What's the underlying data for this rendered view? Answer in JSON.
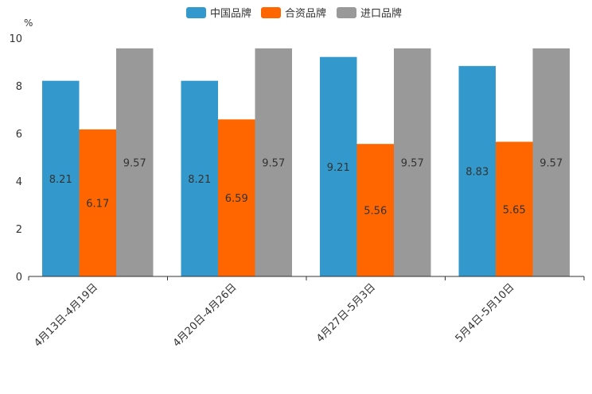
{
  "chart_data": {
    "type": "bar",
    "title": "",
    "xlabel": "",
    "ylabel": "%",
    "ylim": [
      0,
      10
    ],
    "yticks": [
      0,
      2,
      4,
      6,
      8,
      10
    ],
    "grid": false,
    "legend_position": "top-center",
    "categories": [
      "4月13日-4月19日",
      "4月20日-4月26日",
      "4月27日-5月3日",
      "5月4日-5月10日"
    ],
    "series": [
      {
        "name": "中国品牌",
        "color": "#3399cc",
        "values": [
          8.21,
          8.21,
          9.21,
          8.83
        ]
      },
      {
        "name": "合资品牌",
        "color": "#ff6600",
        "values": [
          6.17,
          6.59,
          5.56,
          5.65
        ]
      },
      {
        "name": "进口品牌",
        "color": "#999999",
        "values": [
          9.57,
          9.57,
          9.57,
          9.57
        ]
      }
    ]
  }
}
